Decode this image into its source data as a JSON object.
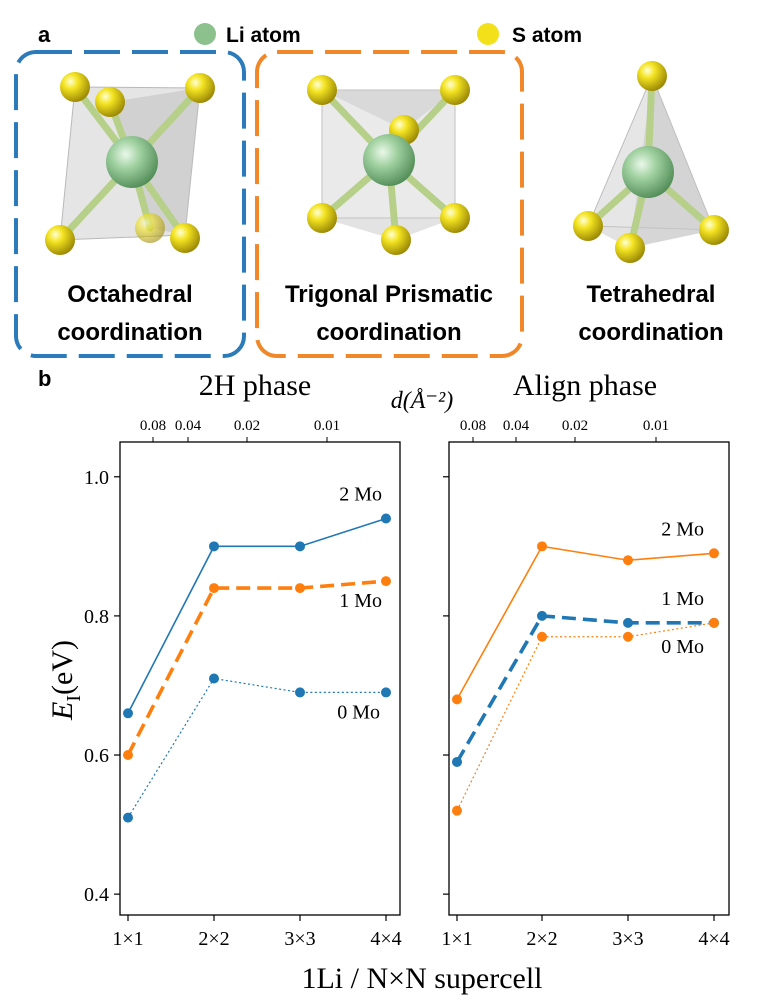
{
  "panel_a": {
    "label": "a",
    "legend": [
      {
        "label": "Li atom",
        "color": "#8cc08c"
      },
      {
        "label": "S atom",
        "color": "#f2e01a"
      }
    ],
    "structures": [
      {
        "line1": "Octahedral",
        "line2": "coordination",
        "frame_color": "#2b7bba"
      },
      {
        "line1": "Trigonal Prismatic",
        "line2": "coordination",
        "frame_color": "#f0882a"
      },
      {
        "line1": "Tetrahedral",
        "line2": "coordination",
        "frame_color": ""
      }
    ]
  },
  "panel_b": {
    "label": "b",
    "top_axis_label": "d(Å⁻²)",
    "shared_xlabel": "1Li / N×N supercell"
  },
  "chart_data": [
    {
      "type": "line",
      "title": "2H phase",
      "categories": [
        "1×1",
        "2×2",
        "3×3",
        "4×4"
      ],
      "ylabel": "E_I(eV)",
      "ylabel_main": "E",
      "ylabel_sub": "I",
      "ylabel_unit": "(eV)",
      "ylim": [
        0.37,
        1.05
      ],
      "yticks": [
        "0.4",
        "0.6",
        "0.8",
        "1.0"
      ],
      "top_ticks": [
        "0.08",
        "0.04",
        "0.02",
        "0.01"
      ],
      "series": [
        {
          "name": "2 Mo",
          "values": [
            0.66,
            0.9,
            0.9,
            0.94
          ],
          "color": "#1f77b4",
          "style": "solid-thin"
        },
        {
          "name": "1 Mo",
          "values": [
            0.6,
            0.84,
            0.84,
            0.85
          ],
          "color": "#ff7f0e",
          "style": "dashed-thick"
        },
        {
          "name": "0 Mo",
          "values": [
            0.51,
            0.71,
            0.69,
            0.69
          ],
          "color": "#1f77b4",
          "style": "dotted"
        }
      ]
    },
    {
      "type": "line",
      "title": "Align phase",
      "categories": [
        "1×1",
        "2×2",
        "3×3",
        "4×4"
      ],
      "ylim": [
        0.37,
        1.05
      ],
      "top_ticks": [
        "0.08",
        "0.04",
        "0.02",
        "0.01"
      ],
      "series": [
        {
          "name": "2 Mo",
          "values": [
            0.68,
            0.9,
            0.88,
            0.89
          ],
          "color": "#ff7f0e",
          "style": "solid-thin"
        },
        {
          "name": "1 Mo",
          "values": [
            0.59,
            0.8,
            0.79,
            0.79
          ],
          "color": "#1f77b4",
          "style": "dashed-thick"
        },
        {
          "name": "0 Mo",
          "values": [
            0.52,
            0.77,
            0.77,
            0.79
          ],
          "color": "#ff7f0e",
          "style": "dotted"
        }
      ]
    }
  ]
}
